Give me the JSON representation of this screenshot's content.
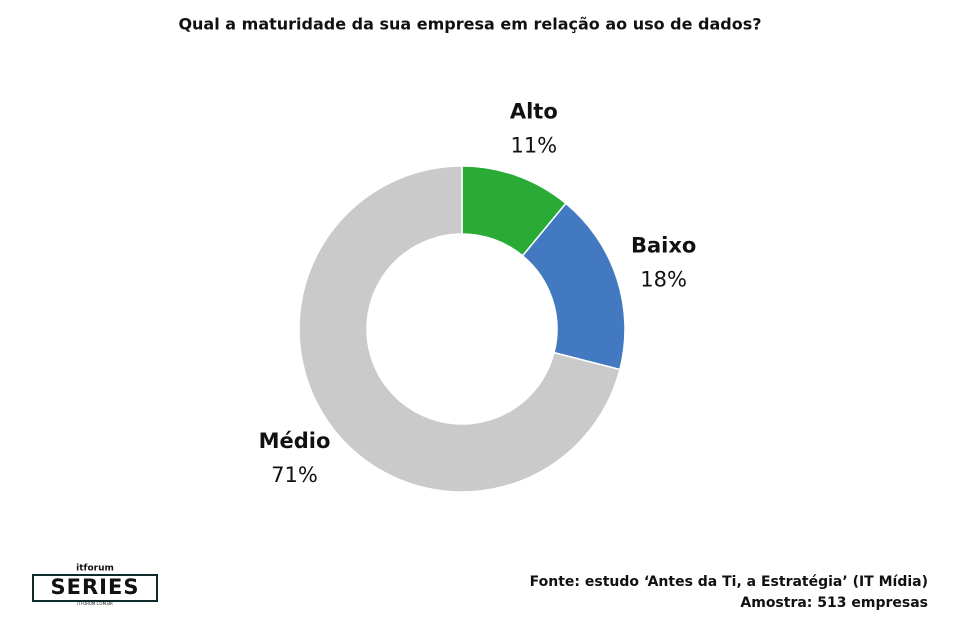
{
  "chart_data": {
    "type": "donut",
    "title": "Qual a maturidade da sua empresa em relação ao uso de dados?",
    "categories": [
      "Alto",
      "Baixo",
      "Médio"
    ],
    "values": [
      11,
      18,
      71
    ],
    "value_labels": [
      "11%",
      "18%",
      "71%"
    ],
    "colors": [
      "#2aab35",
      "#4279c1",
      "#cacaca"
    ],
    "source": [
      "Fonte: estudo ‘Antes da Ti, a Estratégia’ (IT Mídia)",
      "Amostra: 513 empresas"
    ],
    "logo": {
      "top": "itforum",
      "main": "SERIES",
      "url": "ITFORUM.COM.BR"
    }
  }
}
